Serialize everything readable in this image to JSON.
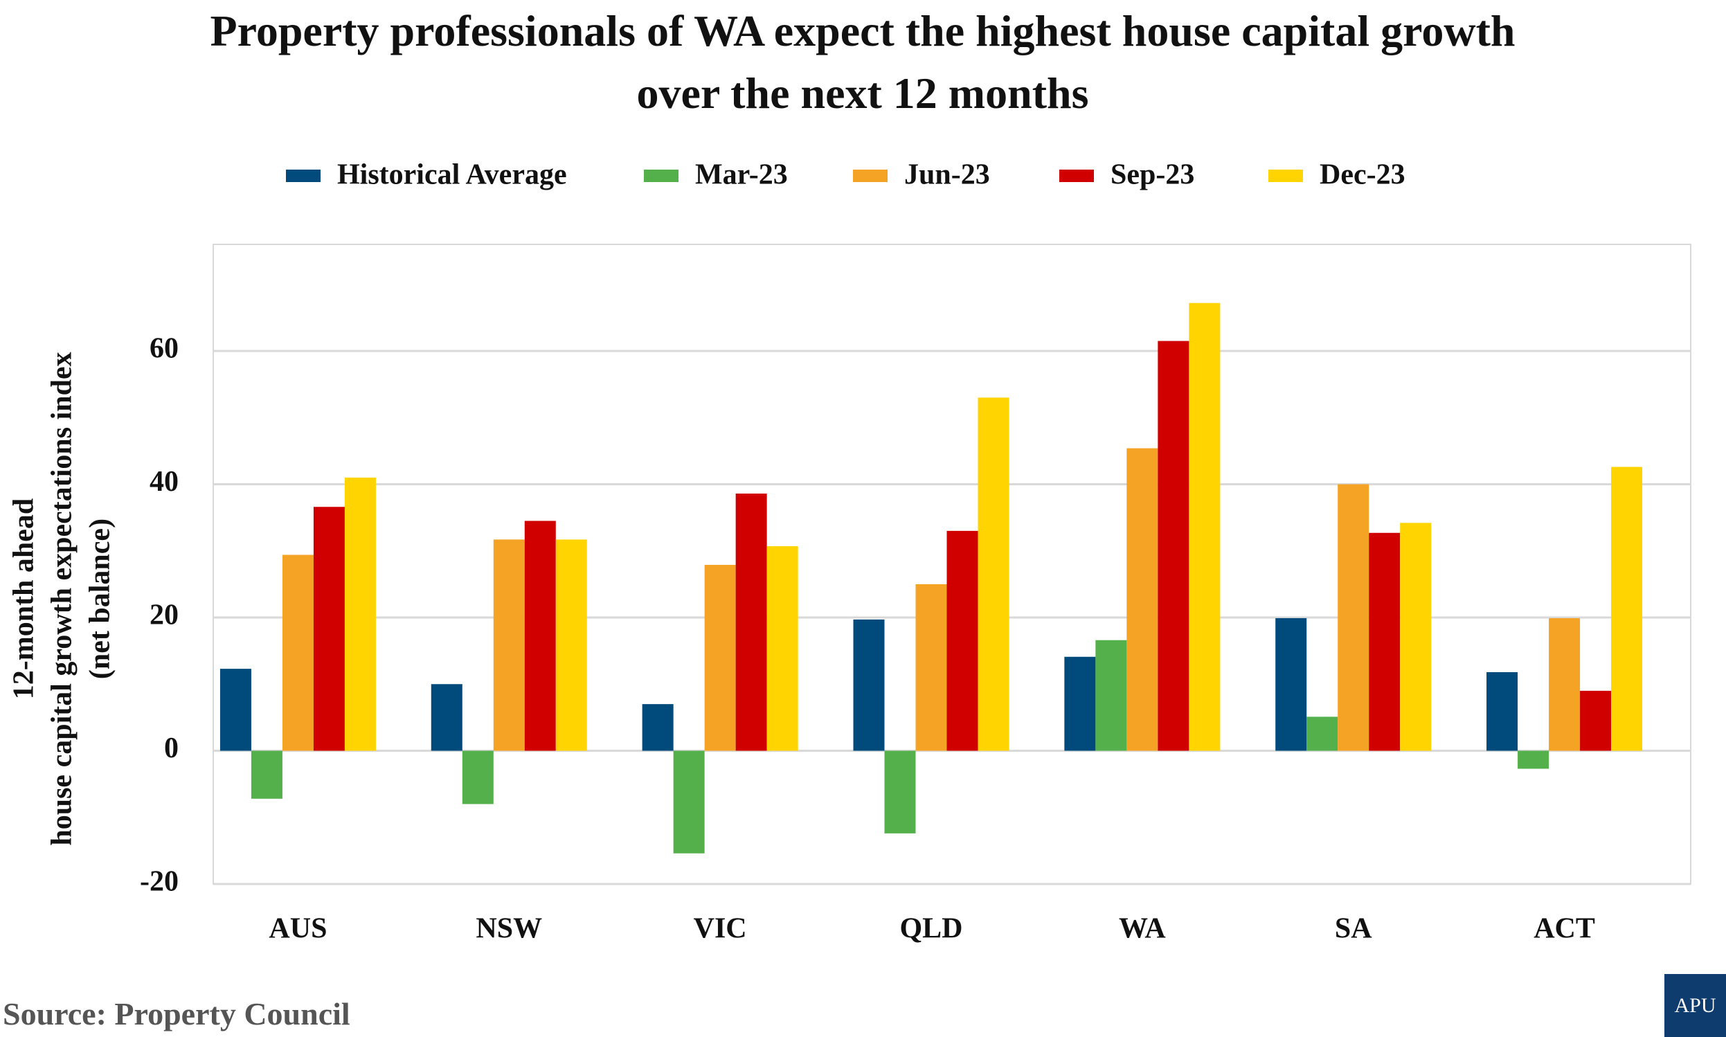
{
  "chart_data": {
    "type": "bar",
    "title": "Property professionals of WA expect the highest house capital growth over the next 12 months",
    "ylabel": [
      "12-month ahead",
      "house capital growth expectations index",
      "(net balance)"
    ],
    "categories": [
      "AUS",
      "NSW",
      "VIC",
      "QLD",
      "WA",
      "SA",
      "ACT"
    ],
    "series": [
      {
        "name": "Historical Average",
        "color": "#004a7c",
        "values": [
          12.3,
          10,
          7,
          19.7,
          14.1,
          19.9,
          11.8
        ]
      },
      {
        "name": "Mar-23",
        "color": "#54b04a",
        "values": [
          -7.2,
          -8,
          -15.4,
          -12.4,
          16.6,
          5.1,
          -2.7
        ]
      },
      {
        "name": "Jun-23",
        "color": "#f5a324",
        "values": [
          29.4,
          31.7,
          27.9,
          25,
          45.4,
          40,
          19.9
        ]
      },
      {
        "name": "Sep-23",
        "color": "#d10000",
        "values": [
          36.6,
          34.5,
          38.6,
          33,
          61.5,
          32.7,
          9
        ]
      },
      {
        "name": "Dec-23",
        "color": "#ffd400",
        "values": [
          41,
          31.7,
          30.7,
          53,
          67.2,
          34.2,
          42.6
        ]
      }
    ],
    "ylim": [
      -20,
      76
    ],
    "yticks": [
      -20,
      0,
      20,
      40,
      60
    ],
    "grid": true,
    "legend": "top"
  },
  "source": "Source: Property Council",
  "logo": "APU"
}
